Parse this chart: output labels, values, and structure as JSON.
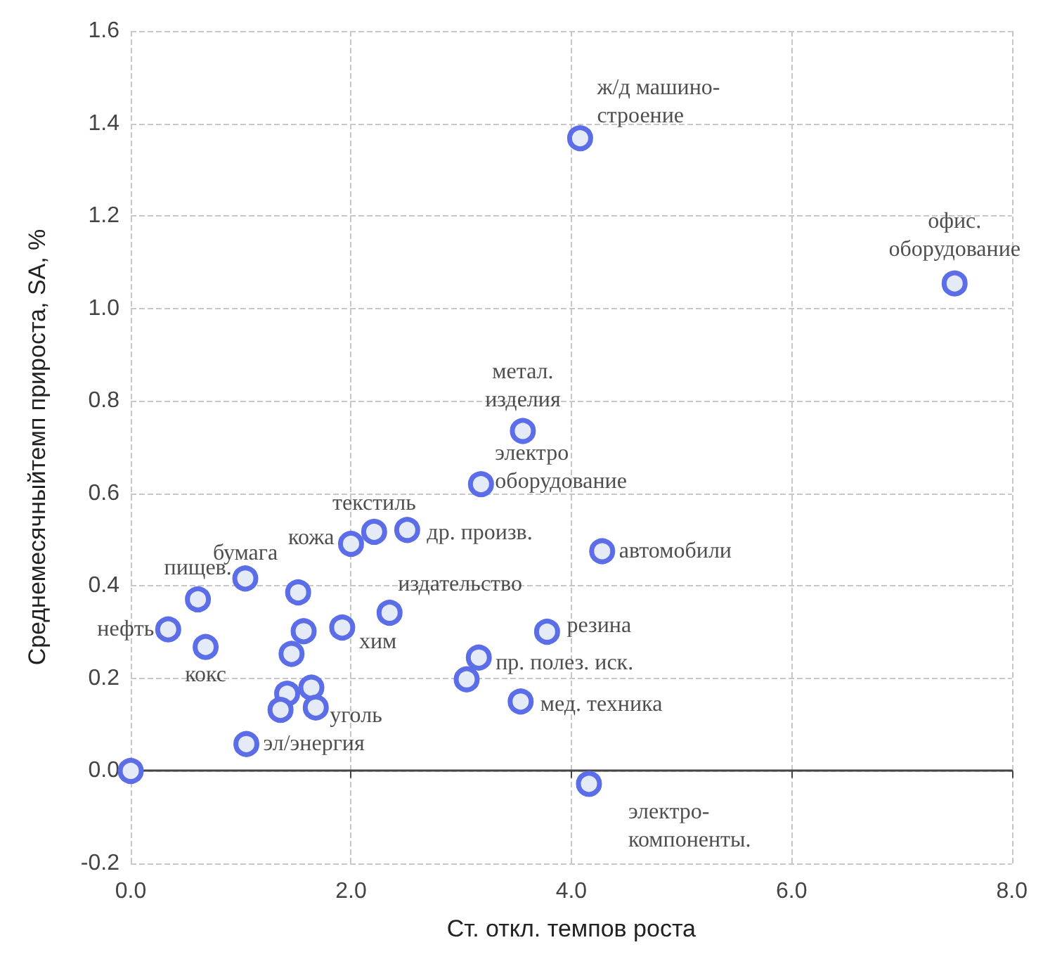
{
  "chart_data": {
    "type": "scatter",
    "xlabel": "Ст. откл. темпов роста",
    "ylabel": "Среднемесячныйтемп прироста, SA, %",
    "x": [
      0,
      0.34,
      0.61,
      0.68,
      1.04,
      1.52,
      1.57,
      1.46,
      1.92,
      2.35,
      1.42,
      1.36,
      1.64,
      1.68,
      1.05,
      2.0,
      2.21,
      2.51,
      3.56,
      3.18,
      4.28,
      3.78,
      3.16,
      3.05,
      3.54,
      4.16,
      4.08,
      7.48
    ],
    "series": [
      {
        "color": "#5b6ee8",
        "values": [
          0,
          0.306,
          0.371,
          0.268,
          0.416,
          0.386,
          0.302,
          0.253,
          0.31,
          0.342,
          0.167,
          0.132,
          0.18,
          0.137,
          0.058,
          0.491,
          0.517,
          0.521,
          0.735,
          0.62,
          0.475,
          0.301,
          0.245,
          0.198,
          0.15,
          -0.028,
          1.368,
          1.054
        ]
      }
    ],
    "marker": "circle",
    "grid": true,
    "xlim": [
      0,
      8
    ],
    "xticks": [
      {
        "value": 0,
        "label": "0.0"
      },
      {
        "value": 2,
        "label": "2.0"
      },
      {
        "value": 4,
        "label": "4.0"
      },
      {
        "value": 6,
        "label": "6.0"
      },
      {
        "value": 8,
        "label": "8.0"
      }
    ],
    "ylim": [
      -0.2,
      1.6
    ],
    "yticks": [
      {
        "value": -0.2,
        "label": "-0.2"
      },
      {
        "value": 0,
        "label": "0.0"
      },
      {
        "value": 0.2,
        "label": "0.2"
      },
      {
        "value": 0.4,
        "label": "0.4"
      },
      {
        "value": 0.6,
        "label": "0.6"
      },
      {
        "value": 0.8,
        "label": "0.8"
      },
      {
        "value": 1.0,
        "label": "1.0"
      },
      {
        "value": 1.2,
        "label": "1.2"
      },
      {
        "value": 1.4,
        "label": "1.4"
      },
      {
        "value": 1.6,
        "label": "1.6"
      }
    ],
    "annotations": [
      {
        "text": "ж/д машино-\nстроение",
        "x": 4.08,
        "y": 1.368
      },
      {
        "text": "офис.\nоборудование",
        "x": 7.48,
        "y": 1.054
      },
      {
        "text": "метал.\nизделия",
        "x": 3.56,
        "y": 0.735
      },
      {
        "text": "электро\nоборудование",
        "x": 3.18,
        "y": 0.62
      },
      {
        "text": "текстиль",
        "x": 2.21,
        "y": 0.517
      },
      {
        "text": "кожа",
        "x": 2.0,
        "y": 0.491
      },
      {
        "text": "др. произв.",
        "x": 2.51,
        "y": 0.521
      },
      {
        "text": "бумага",
        "x": 1.04,
        "y": 0.416
      },
      {
        "text": "пищев.",
        "x": 0.61,
        "y": 0.371
      },
      {
        "text": "нефть",
        "x": 0.34,
        "y": 0.306
      },
      {
        "text": "кокс",
        "x": 0.68,
        "y": 0.268
      },
      {
        "text": "автомобили",
        "x": 4.28,
        "y": 0.475
      },
      {
        "text": "издательство",
        "x": 2.35,
        "y": 0.342
      },
      {
        "text": "хим",
        "x": 1.92,
        "y": 0.31
      },
      {
        "text": "резина",
        "x": 3.78,
        "y": 0.301
      },
      {
        "text": "пр. полез. иск.",
        "x": 3.16,
        "y": 0.245
      },
      {
        "text": "уголь",
        "x": 1.68,
        "y": 0.137
      },
      {
        "text": "мед. техника",
        "x": 3.54,
        "y": 0.15
      },
      {
        "text": "эл/энергия",
        "x": 1.05,
        "y": 0.058
      },
      {
        "text": "электро-\nкомпоненты.",
        "x": 4.16,
        "y": -0.028
      }
    ]
  }
}
